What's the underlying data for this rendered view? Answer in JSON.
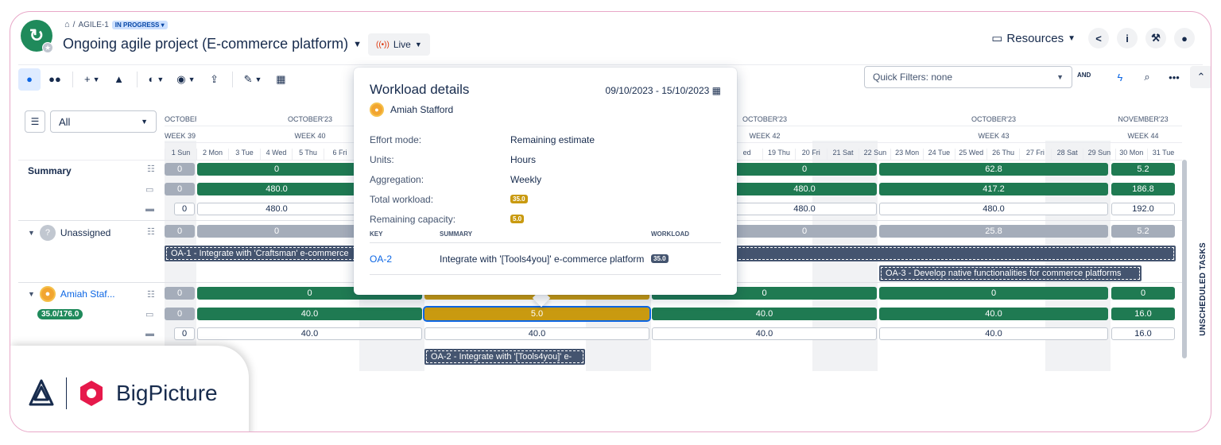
{
  "header": {
    "breadcrumb_key": "AGILE-1",
    "status": "IN PROGRESS",
    "title": "Ongoing agile project (E-commerce platform)",
    "live_label": "Live",
    "resources_label": "Resources"
  },
  "toolbar": {
    "quick_filters": "Quick Filters: none",
    "and_label": "AND"
  },
  "left": {
    "filter_value": "All",
    "summary_label": "Summary",
    "unassigned_label": "Unassigned",
    "amiah_label": "Amiah Staf...",
    "amiah_pill": "35.0/176.0"
  },
  "timeline": {
    "months": [
      "OCTOBER",
      "OCTOBER'23",
      "OCTOBER'23",
      "OCTOBER'23",
      "NOVEMBER'23"
    ],
    "weeks": [
      "WEEK 39",
      "WEEK 40",
      "WEEK 42",
      "WEEK 43",
      "WEEK 44"
    ],
    "days_left": [
      "1 Sun",
      "2 Mon",
      "3 Tue",
      "4 Wed",
      "5 Thu",
      "6 Fri"
    ],
    "days_right": [
      "ed",
      "19 Thu",
      "20 Fri",
      "21 Sat",
      "22 Sun",
      "23 Mon",
      "24 Tue",
      "25 Wed",
      "26 Thu",
      "27 Fri",
      "28 Sat",
      "29 Sun",
      "30 Mon",
      "31 Tue"
    ]
  },
  "values": {
    "summary": {
      "r1": [
        "0",
        "0",
        "0",
        "62.8",
        "5.2"
      ],
      "r2": [
        "0",
        "480.0",
        "480.0",
        "417.2",
        "186.8"
      ],
      "r3": [
        "0",
        "480.0",
        "480.0",
        "480.0",
        "192.0"
      ]
    },
    "unassigned": {
      "r1": [
        "0",
        "0",
        "0",
        "25.8",
        "5.2"
      ]
    },
    "amiah": {
      "r1": [
        "0",
        "0",
        "0",
        "0",
        "0"
      ],
      "r2": [
        "0",
        "40.0",
        "5.0",
        "40.0",
        "40.0",
        "16.0"
      ],
      "r3": [
        "0",
        "40.0",
        "40.0",
        "40.0",
        "40.0",
        "16.0"
      ]
    },
    "tasks": {
      "oa1": "OA-1 - Integrate with 'Craftsman' e-commerce",
      "oa3": "OA-3 - Develop native functionalities for commerce platforms",
      "oa2": "OA-2 - Integrate with '[Tools4you]' e-"
    }
  },
  "popup": {
    "title": "Workload details",
    "date_range": "09/10/2023 - 15/10/2023",
    "user": "Amiah Stafford",
    "rows": [
      {
        "k": "Effort mode:",
        "v": "Remaining estimate"
      },
      {
        "k": "Units:",
        "v": "Hours"
      },
      {
        "k": "Aggregation:",
        "v": "Weekly"
      }
    ],
    "total_label": "Total workload:",
    "total_value": "35.0",
    "remaining_label": "Remaining capacity:",
    "remaining_value": "5.0",
    "col_key": "KEY",
    "col_summary": "SUMMARY",
    "col_workload": "WORKLOAD",
    "item_key": "OA-2",
    "item_summary": "Integrate with '[Tools4you]' e-commerce platform",
    "item_workload": "35.0"
  },
  "side_label": "UNSCHEDULED TASKS",
  "brand": {
    "name": "BigPicture"
  },
  "colors": {
    "green": "#1f7a52",
    "gold": "#c99a10",
    "grey": "#a5adba",
    "accent": "#0c66e4"
  }
}
